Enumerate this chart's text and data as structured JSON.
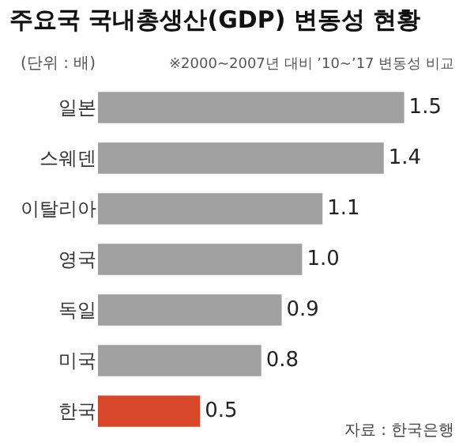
{
  "chart_data": {
    "type": "bar",
    "orientation": "horizontal",
    "title": "주요국 국내총생산(GDP) 변동성 현황",
    "subtitle": "(단위 : 배)",
    "annotations": [
      "※2000~2007년 대비 ’10~’17 변동성 비교",
      "자료 : 한국은행"
    ],
    "categories": [
      "일본",
      "스웨덴",
      "이탈리아",
      "영국",
      "독일",
      "미국",
      "한국"
    ],
    "values": [
      1.5,
      1.4,
      1.1,
      1.0,
      0.9,
      0.8,
      0.5
    ],
    "value_labels": [
      "1.5",
      "1.4",
      "1.1",
      "1.0",
      "0.9",
      "0.8",
      "0.5"
    ],
    "colors": [
      "#a0a0a0",
      "#a0a0a0",
      "#a0a0a0",
      "#a0a0a0",
      "#a0a0a0",
      "#a0a0a0",
      "#d9472b"
    ],
    "grid": false,
    "legend": false
  }
}
